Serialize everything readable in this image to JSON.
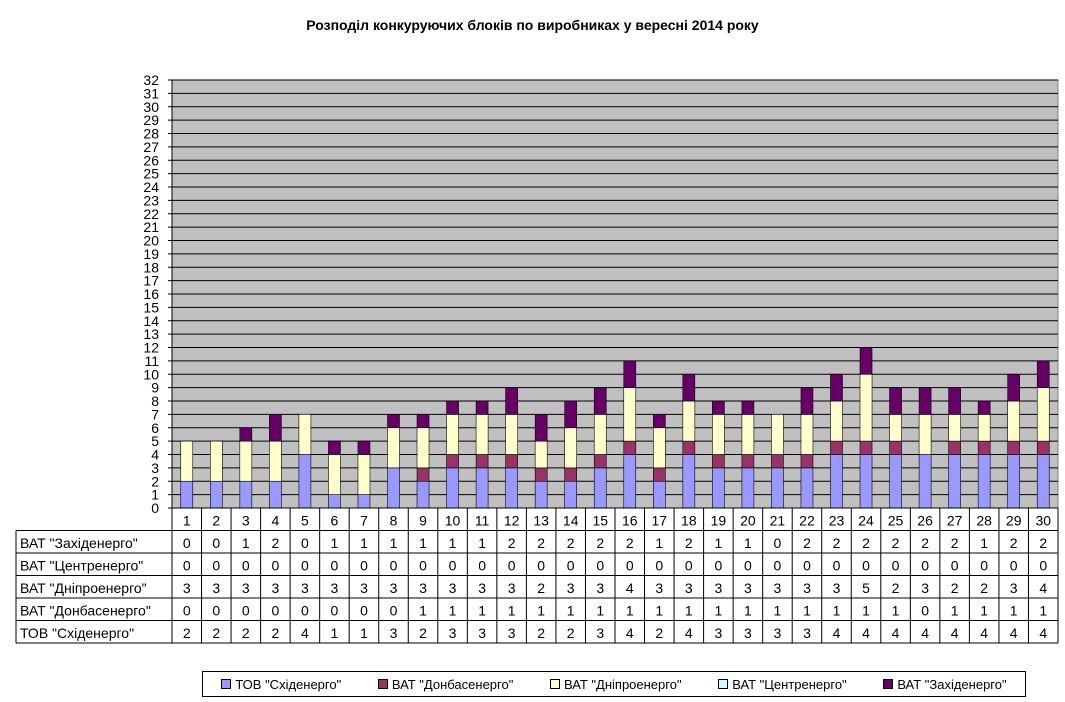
{
  "chart_data": {
    "type": "bar",
    "stacked": true,
    "title": "Розподіл конкуруючих блоків по виробниках у вересні 2014 року",
    "xlabel": "",
    "ylabel": "",
    "ylim": [
      0,
      32
    ],
    "yticks": [
      0,
      1,
      2,
      3,
      4,
      5,
      6,
      7,
      8,
      9,
      10,
      11,
      12,
      13,
      14,
      15,
      16,
      17,
      18,
      19,
      20,
      21,
      22,
      23,
      24,
      25,
      26,
      27,
      28,
      29,
      30,
      31,
      32
    ],
    "grid": true,
    "legend_position": "bottom",
    "categories": [
      "1",
      "2",
      "3",
      "4",
      "5",
      "6",
      "7",
      "8",
      "9",
      "10",
      "11",
      "12",
      "13",
      "14",
      "15",
      "16",
      "17",
      "18",
      "19",
      "20",
      "21",
      "22",
      "23",
      "24",
      "25",
      "26",
      "27",
      "28",
      "29",
      "30"
    ],
    "series": [
      {
        "name": "ТОВ \"Східенерго\"",
        "color": "#9999ff",
        "values": [
          2,
          2,
          2,
          2,
          4,
          1,
          1,
          3,
          2,
          3,
          3,
          3,
          2,
          2,
          3,
          4,
          2,
          4,
          3,
          3,
          3,
          3,
          4,
          4,
          4,
          4,
          4,
          4,
          4,
          4
        ]
      },
      {
        "name": "ВАТ \"Донбасенерго\"",
        "color": "#993366",
        "values": [
          0,
          0,
          0,
          0,
          0,
          0,
          0,
          0,
          1,
          1,
          1,
          1,
          1,
          1,
          1,
          1,
          1,
          1,
          1,
          1,
          1,
          1,
          1,
          1,
          1,
          0,
          1,
          1,
          1,
          1
        ]
      },
      {
        "name": "ВАТ \"Дніпроенерго\"",
        "color": "#ffffcc",
        "values": [
          3,
          3,
          3,
          3,
          3,
          3,
          3,
          3,
          3,
          3,
          3,
          3,
          2,
          3,
          3,
          4,
          3,
          3,
          3,
          3,
          3,
          3,
          3,
          5,
          2,
          3,
          2,
          2,
          3,
          4
        ]
      },
      {
        "name": "ВАТ \"Центренерго\"",
        "color": "#ccffff",
        "values": [
          0,
          0,
          0,
          0,
          0,
          0,
          0,
          0,
          0,
          0,
          0,
          0,
          0,
          0,
          0,
          0,
          0,
          0,
          0,
          0,
          0,
          0,
          0,
          0,
          0,
          0,
          0,
          0,
          0,
          0
        ]
      },
      {
        "name": "ВАТ \"Західенерго\"",
        "color": "#660066",
        "values": [
          0,
          0,
          1,
          2,
          0,
          1,
          1,
          1,
          1,
          1,
          1,
          2,
          2,
          2,
          2,
          2,
          1,
          2,
          1,
          1,
          0,
          2,
          2,
          2,
          2,
          2,
          2,
          1,
          2,
          2
        ]
      }
    ],
    "table_row_order": [
      4,
      3,
      2,
      1,
      0
    ]
  }
}
